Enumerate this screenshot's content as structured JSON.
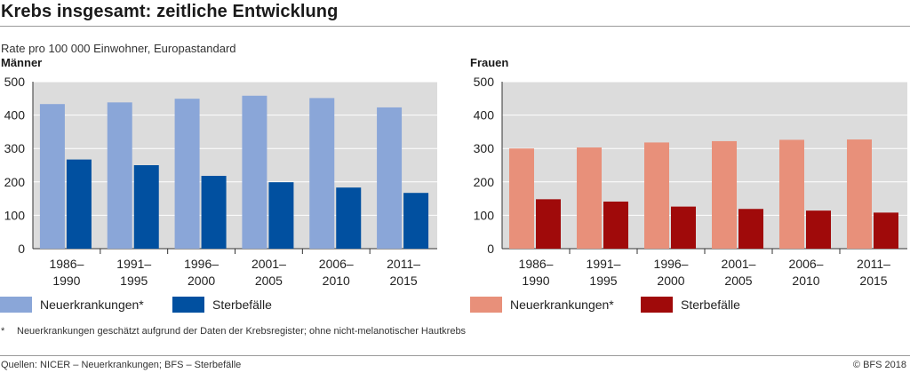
{
  "title": "Krebs insgesamt: zeitliche Entwicklung",
  "subtitle": "Rate pro 100 000 Einwohner, Europastandard",
  "footnote_marker": "*",
  "footnote": "Neuerkrankungen geschätzt aufgrund der Daten der Krebsregister; ohne nicht-melanotischer Hautkrebs",
  "source": "Quellen: NICER – Neuerkrankungen; BFS – Sterbefälle",
  "copyright": "© BFS 2018",
  "colors": {
    "men_incidence": "#8aa6d8",
    "men_deaths": "#0150a0",
    "women_incidence": "#e8907a",
    "women_deaths": "#a00a0a",
    "plot_bg": "#dcdcdc",
    "grid": "#ffffff"
  },
  "chart_data": [
    {
      "type": "bar",
      "title": "Männer",
      "categories": [
        [
          "1986–",
          "1990"
        ],
        [
          "1991–",
          "1995"
        ],
        [
          "1996–",
          "2000"
        ],
        [
          "2001–",
          "2005"
        ],
        [
          "2006–",
          "2010"
        ],
        [
          "2011–",
          "2015"
        ]
      ],
      "series": [
        {
          "name": "Neuerkrankungen*",
          "color": "#8aa6d8",
          "values": [
            433,
            438,
            449,
            458,
            451,
            423
          ]
        },
        {
          "name": "Sterbefälle",
          "color": "#0150a0",
          "values": [
            267,
            250,
            218,
            199,
            183,
            167
          ]
        }
      ],
      "ylim": [
        0,
        500
      ],
      "yticks": [
        0,
        100,
        200,
        300,
        400,
        500
      ],
      "grid": true,
      "legend": "bottom"
    },
    {
      "type": "bar",
      "title": "Frauen",
      "categories": [
        [
          "1986–",
          "1990"
        ],
        [
          "1991–",
          "1995"
        ],
        [
          "1996–",
          "2000"
        ],
        [
          "2001–",
          "2005"
        ],
        [
          "2006–",
          "2010"
        ],
        [
          "2011–",
          "2015"
        ]
      ],
      "series": [
        {
          "name": "Neuerkrankungen*",
          "color": "#e8907a",
          "values": [
            300,
            303,
            318,
            322,
            326,
            327
          ]
        },
        {
          "name": "Sterbefälle",
          "color": "#a00a0a",
          "values": [
            148,
            141,
            126,
            119,
            114,
            108
          ]
        }
      ],
      "ylim": [
        0,
        500
      ],
      "yticks": [
        0,
        100,
        200,
        300,
        400,
        500
      ],
      "grid": true,
      "legend": "bottom"
    }
  ]
}
